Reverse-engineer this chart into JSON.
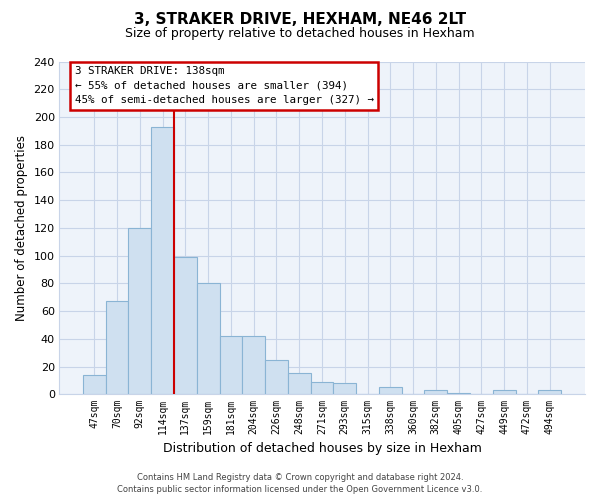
{
  "title": "3, STRAKER DRIVE, HEXHAM, NE46 2LT",
  "subtitle": "Size of property relative to detached houses in Hexham",
  "xlabel": "Distribution of detached houses by size in Hexham",
  "ylabel": "Number of detached properties",
  "bar_labels": [
    "47sqm",
    "70sqm",
    "92sqm",
    "114sqm",
    "137sqm",
    "159sqm",
    "181sqm",
    "204sqm",
    "226sqm",
    "248sqm",
    "271sqm",
    "293sqm",
    "315sqm",
    "338sqm",
    "360sqm",
    "382sqm",
    "405sqm",
    "427sqm",
    "449sqm",
    "472sqm",
    "494sqm"
  ],
  "bar_values": [
    14,
    67,
    120,
    193,
    99,
    80,
    42,
    42,
    25,
    15,
    9,
    8,
    0,
    5,
    0,
    3,
    1,
    0,
    3,
    0,
    3
  ],
  "bar_color": "#cfe0f0",
  "bar_edge_color": "#8ab4d4",
  "highlight_line_color": "#cc0000",
  "highlight_bar_index": 4,
  "ylim": [
    0,
    240
  ],
  "yticks": [
    0,
    20,
    40,
    60,
    80,
    100,
    120,
    140,
    160,
    180,
    200,
    220,
    240
  ],
  "annotation_title": "3 STRAKER DRIVE: 138sqm",
  "annotation_line1": "← 55% of detached houses are smaller (394)",
  "annotation_line2": "45% of semi-detached houses are larger (327) →",
  "footer_line1": "Contains HM Land Registry data © Crown copyright and database right 2024.",
  "footer_line2": "Contains public sector information licensed under the Open Government Licence v3.0.",
  "background_color": "#ffffff",
  "plot_bg_color": "#eef3fa",
  "grid_color": "#c8d4e8",
  "fig_width": 6.0,
  "fig_height": 5.0
}
